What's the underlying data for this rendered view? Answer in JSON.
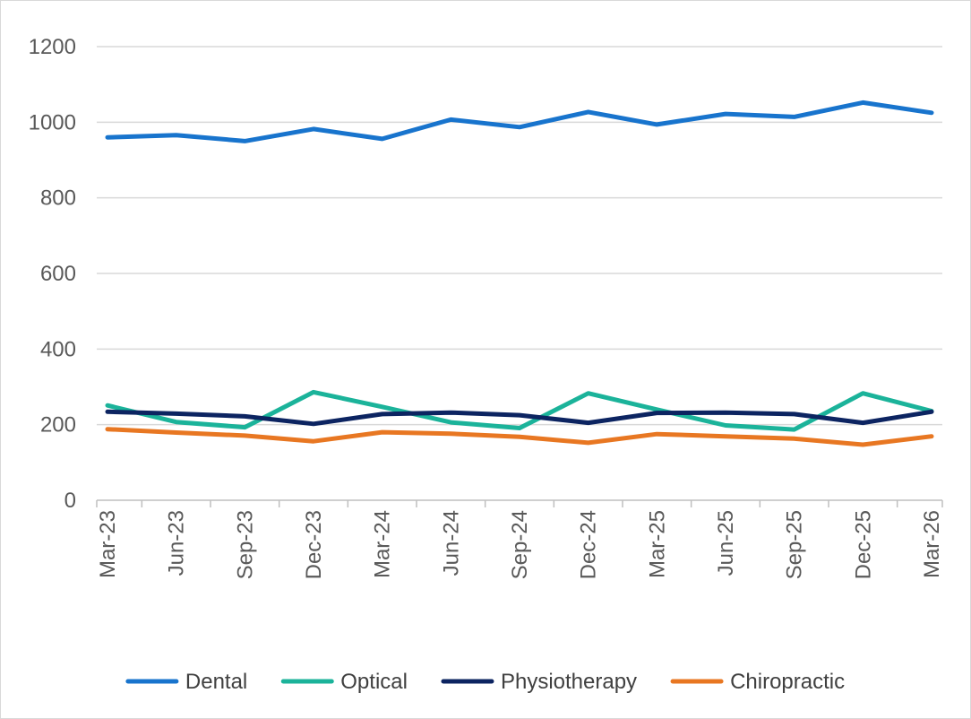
{
  "chart_data": {
    "type": "line",
    "title": "",
    "xlabel": "",
    "ylabel": "",
    "categories": [
      "Mar-23",
      "Jun-23",
      "Sep-23",
      "Dec-23",
      "Mar-24",
      "Jun-24",
      "Sep-24",
      "Dec-24",
      "Mar-25",
      "Jun-25",
      "Sep-25",
      "Dec-25",
      "Mar-26"
    ],
    "ylim": [
      0,
      1200
    ],
    "yticks": [
      0,
      200,
      400,
      600,
      800,
      1000,
      1200
    ],
    "grid": true,
    "legend_position": "bottom",
    "series": [
      {
        "name": "Dental",
        "color": "#1874cd",
        "values": [
          960,
          966,
          950,
          982,
          956,
          1007,
          987,
          1027,
          994,
          1022,
          1014,
          1052,
          1025
        ]
      },
      {
        "name": "Optical",
        "color": "#1bb39a",
        "values": [
          251,
          207,
          193,
          286,
          247,
          206,
          191,
          283,
          240,
          198,
          187,
          283,
          236
        ]
      },
      {
        "name": "Physiotherapy",
        "color": "#0c2461",
        "values": [
          234,
          229,
          222,
          202,
          228,
          232,
          225,
          205,
          231,
          232,
          228,
          205,
          234
        ]
      },
      {
        "name": "Chiropractic",
        "color": "#e87722",
        "values": [
          188,
          179,
          171,
          156,
          180,
          176,
          168,
          152,
          175,
          169,
          163,
          147,
          169
        ]
      }
    ]
  }
}
